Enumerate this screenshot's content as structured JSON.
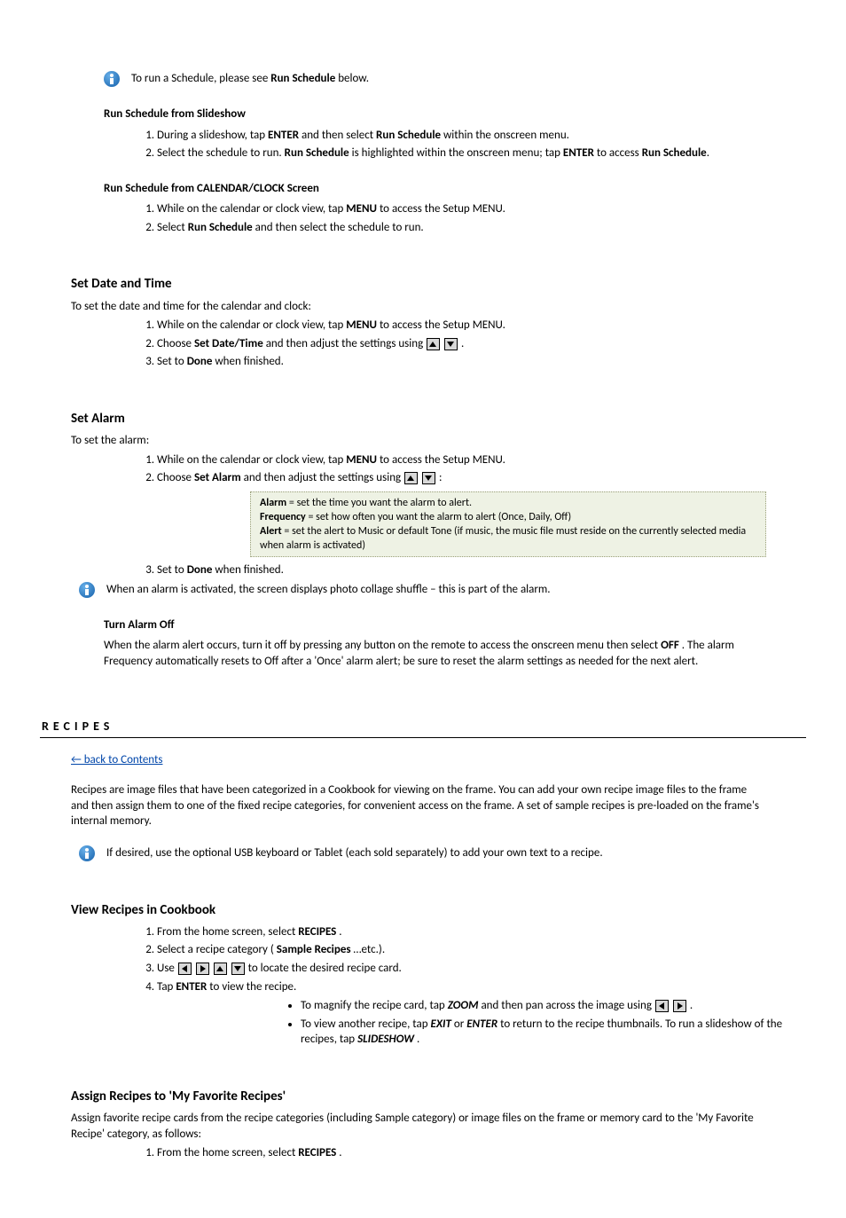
{
  "note": {
    "ts": [
      "To run a Schedule, please see ",
      "Run Schedule",
      " below."
    ]
  },
  "rs_slideshow": {
    "title": "Run Schedule from Slideshow",
    "l1": [
      "During a slideshow, tap ",
      " and then select ",
      " within the onscreen menu."
    ],
    "k1": "ENTER",
    "k2": "Run Schedule",
    "l2": [
      "Select the schedule to run. ",
      " is highlighted within the onscreen menu; tap ",
      " to access ",
      "."
    ],
    "k3": "Run Schedule",
    "k4": "ENTER",
    "k5": "Run Schedule"
  },
  "rs_cal": {
    "title": "Run Schedule from CALENDAR/CLOCK Screen",
    "l1": [
      "While on the calendar or clock view, tap ",
      " to access the Setup MENU."
    ],
    "k1": "MENU",
    "l2": [
      "Select ",
      " and then select the schedule to run."
    ],
    "k2": "Run Schedule"
  },
  "sdt": {
    "title": "Set Date and Time",
    "intro": "To set the date and time for the calendar and clock:",
    "l1": [
      "While on the calendar or clock view, tap ",
      " to access the Setup MENU."
    ],
    "k1": "MENU",
    "l2a": "Choose ",
    "k2": "Set Date/Time",
    "l2b": " and then adjust the settings using ",
    "l2c": ".",
    "l3a": "Set to ",
    "k3": "Done",
    "l3b": " when finished."
  },
  "sa": {
    "title": "Set Alarm",
    "intro": "To set the alarm:",
    "l1": [
      "While on the calendar or clock view, tap ",
      " to access the Setup MENU."
    ],
    "k1": "MENU",
    "l2a": "Choose ",
    "k2": "Set Alarm",
    "l2b": " and then adjust the settings using ",
    "l2c": ": ",
    "box": {
      "a": [
        "Alarm",
        " = set the time you want the alarm to alert."
      ],
      "b": [
        "Frequency",
        " = set how often you want the alarm to alert (Once, Daily, Off)"
      ],
      "c": [
        "Alert",
        " = set the alert to Music or default Tone (if music, the music file must reside on the currently selected media when alarm is activated)"
      ]
    },
    "l3a": "Set to ",
    "k3": "Done",
    "l3b": " when finished.",
    "note": "When an alarm is activated, the screen displays photo collage shuffle – this is part of the alarm.",
    "off_title": "Turn Alarm Off",
    "off_body": [
      "When the alarm alert occurs, turn it off by pressing any button on the remote to access the onscreen menu then select ",
      ".",
      " The alarm Frequency automatically resets to Off after a 'Once' alarm alert; be sure to reset the alarm settings as needed for the next alert."
    ],
    "off_key": "OFF"
  },
  "recipes": {
    "sect": "RECIPES",
    "linklabel": "← back to Contents",
    "intro": "Recipes are image files that have been categorized in a Cookbook for viewing on the frame. You can add your own recipe image files to the frame and then assign them to one of the fixed recipe categories, for convenient access on the frame. A set of sample recipes is pre-loaded on the frame's internal memory.",
    "noteicon": "If desired, use the optional USB keyboard or Tablet (each sold separately) to add your own text to a recipe."
  },
  "vr": {
    "title": "View Recipes in Cookbook",
    "l1": [
      "From the home screen, select ",
      "."
    ],
    "k1": "RECIPES",
    "l2": [
      "Select a recipe category (",
      "…etc.)."
    ],
    "k2": "Sample Recipes",
    "l3a": "Use ",
    "l3b": " to locate the desired recipe card.",
    "l4": [
      "Tap ",
      " to view the recipe."
    ],
    "k4": "ENTER",
    "bul1": [
      "To magnify the recipe card, tap ",
      " and then pan across the image using ",
      "."
    ],
    "bk1": "ZOOM",
    "bul2": [
      "To view another recipe, tap ",
      " or ",
      " to return to the recipe thumbnails. To run a slideshow of the recipes, tap ",
      "."
    ],
    "bk2": "EXIT",
    "bk3": "ENTER",
    "bk4": "SLIDESHOW"
  },
  "ar": {
    "title": "Assign Recipes to 'My Favorite Recipes'",
    "intro": "Assign favorite recipe cards from the recipe categories (including Sample category) or image files on the frame or memory card to the 'My Favorite Recipe' category, as follows:",
    "l1": [
      "From the home screen, select ",
      "."
    ],
    "k1": "RECIPES"
  }
}
